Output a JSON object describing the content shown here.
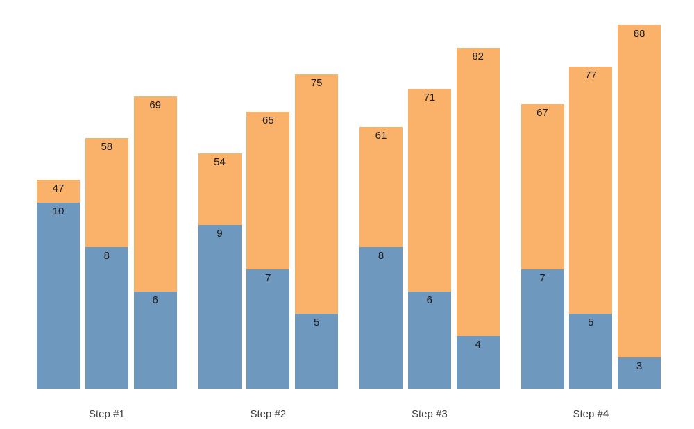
{
  "chart_data": {
    "type": "bar",
    "variant": "grouped-stacked",
    "title": "",
    "xlabel": "",
    "ylabel": "",
    "legend": "none",
    "gridlines": false,
    "axes_visible": false,
    "background": "#ffffff",
    "categories": [
      "Step #1",
      "Step #2",
      "Step #3",
      "Step #4"
    ],
    "series": [
      {
        "name": "bottom-blue-segment-values",
        "values": [
          10,
          8,
          6,
          9,
          7,
          5,
          8,
          6,
          4,
          7,
          5,
          3
        ]
      },
      {
        "name": "top-orange-total-values",
        "values": [
          47,
          58,
          69,
          54,
          65,
          75,
          61,
          71,
          82,
          67,
          77,
          88
        ]
      }
    ],
    "groups": [
      {
        "category": "Step #1",
        "bars": [
          {
            "bottom_value": "10",
            "top_label": "47"
          },
          {
            "bottom_value": "8",
            "top_label": "58"
          },
          {
            "bottom_value": "6",
            "top_label": "69"
          }
        ]
      },
      {
        "category": "Step #2",
        "bars": [
          {
            "bottom_value": "9",
            "top_label": "54"
          },
          {
            "bottom_value": "7",
            "top_label": "65"
          },
          {
            "bottom_value": "5",
            "top_label": "75"
          }
        ]
      },
      {
        "category": "Step #3",
        "bars": [
          {
            "bottom_value": "8",
            "top_label": "61"
          },
          {
            "bottom_value": "6",
            "top_label": "71"
          },
          {
            "bottom_value": "4",
            "top_label": "82"
          }
        ]
      },
      {
        "category": "Step #4",
        "bars": [
          {
            "bottom_value": "7",
            "top_label": "67"
          },
          {
            "bottom_value": "5",
            "top_label": "77"
          },
          {
            "bottom_value": "3",
            "top_label": "88"
          }
        ]
      }
    ],
    "colors": {
      "bottom_segment": "#6E98BE",
      "top_segment": "#FAB26B",
      "value_label": "#1b1b1b",
      "category_label": "#3f3f3f"
    }
  }
}
